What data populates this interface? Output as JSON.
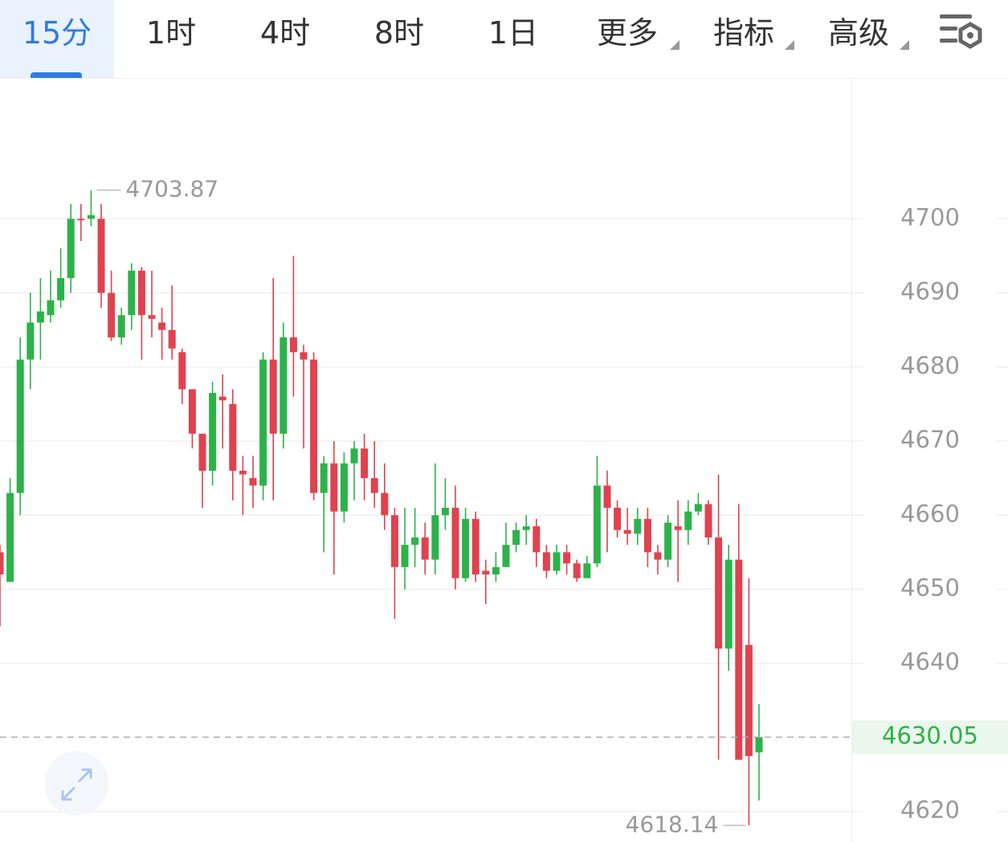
{
  "tabs": [
    "15分",
    "1时",
    "4时",
    "8时",
    "1日",
    "更多",
    "指标",
    "高级"
  ],
  "chart_data": {
    "type": "candlestick",
    "up_color": "#2db24a",
    "down_color": "#e0424f",
    "ylim": [
      4615.9,
      4718.9
    ],
    "yticks": [
      4620,
      4640,
      4650,
      4660,
      4670,
      4680,
      4690,
      4700
    ],
    "grid": true,
    "open": [
      4655,
      4651,
      4663,
      4681,
      4686,
      4687,
      4689,
      4692,
      4700,
      4700,
      4700,
      4690,
      4684,
      4687,
      4693,
      4687,
      4686,
      4685,
      4682,
      4677,
      4671,
      4666,
      4676,
      4675,
      4666,
      4665,
      4664,
      4681,
      4671,
      4684,
      4682,
      4681,
      4663,
      4667,
      4660.5,
      4667,
      4669,
      4665,
      4663,
      4660,
      4653,
      4656,
      4657,
      4654,
      4660,
      4661,
      4651.5,
      4659.5,
      4652.5,
      4652,
      4653,
      4656,
      4658,
      4658.5,
      4655,
      4652.5,
      4655,
      4653.5,
      4651.5,
      4653.5,
      4664,
      4661,
      4658,
      4657.5,
      4659.5,
      4655,
      4654,
      4658.5,
      4658,
      4660.5,
      4661.5,
      4657,
      4642,
      4654,
      4642.5,
      4628
    ],
    "high": [
      4656,
      4665,
      4684,
      4690,
      4692,
      4693,
      4696,
      4702,
      4702,
      4703.87,
      4702,
      4693,
      4688,
      4694,
      4693.5,
      4693,
      4688,
      4691,
      4682.5,
      4677,
      4671,
      4678,
      4679,
      4677,
      4668,
      4668,
      4682,
      4692,
      4686,
      4695,
      4683,
      4682,
      4668,
      4670,
      4668.5,
      4670,
      4671,
      4670,
      4667,
      4661,
      4661,
      4661,
      4659,
      4667,
      4665,
      4664,
      4661,
      4660.5,
      4654,
      4655,
      4659,
      4659,
      4660,
      4659.5,
      4656,
      4656,
      4656,
      4654,
      4654.5,
      4668,
      4666,
      4662,
      4661,
      4661,
      4661,
      4656,
      4660,
      4662,
      4662,
      4663,
      4662,
      4665.5,
      4656,
      4661.5,
      4651.5,
      4634.5
    ],
    "low": [
      4645,
      4651,
      4660,
      4677,
      4681,
      4686,
      4688,
      4690,
      4697,
      4699,
      4688,
      4683.5,
      4683,
      4685,
      4681,
      4684,
      4681,
      4681,
      4675,
      4669,
      4661,
      4664,
      4669,
      4662,
      4660,
      4661,
      4662,
      4662,
      4669,
      4676,
      4669,
      4662,
      4655,
      4652,
      4659,
      4662,
      4662,
      4661,
      4658,
      4646,
      4650,
      4653,
      4652,
      4652,
      4658,
      4650,
      4651,
      4651,
      4648,
      4651,
      4653,
      4655,
      4656,
      4653,
      4651.5,
      4652,
      4652,
      4651,
      4651.5,
      4653,
      4655,
      4657,
      4656,
      4656,
      4653,
      4652,
      4653,
      4651,
      4656,
      4660,
      4656,
      4627,
      4639,
      4627,
      4618.14,
      4621.5
    ],
    "close": [
      4652,
      4663,
      4681,
      4686,
      4687.5,
      4689,
      4692,
      4700,
      4699.8,
      4700.5,
      4690,
      4684,
      4687,
      4693,
      4687,
      4686.5,
      4685,
      4682.5,
      4677,
      4671,
      4666,
      4676.5,
      4675.5,
      4666,
      4665.5,
      4664,
      4681,
      4671,
      4684,
      4682,
      4681,
      4663,
      4667,
      4660.5,
      4667,
      4669,
      4665,
      4663,
      4660,
      4653,
      4656,
      4657,
      4654,
      4660,
      4661,
      4651.5,
      4659.5,
      4652,
      4652,
      4653,
      4656,
      4658,
      4658.5,
      4655,
      4652.5,
      4655,
      4653.5,
      4651.5,
      4653.5,
      4664,
      4661,
      4658,
      4657.5,
      4659.5,
      4655,
      4654,
      4659,
      4658,
      4660.5,
      4661.5,
      4657,
      4642,
      4654,
      4627,
      4627.5,
      4630.05
    ]
  }
}
